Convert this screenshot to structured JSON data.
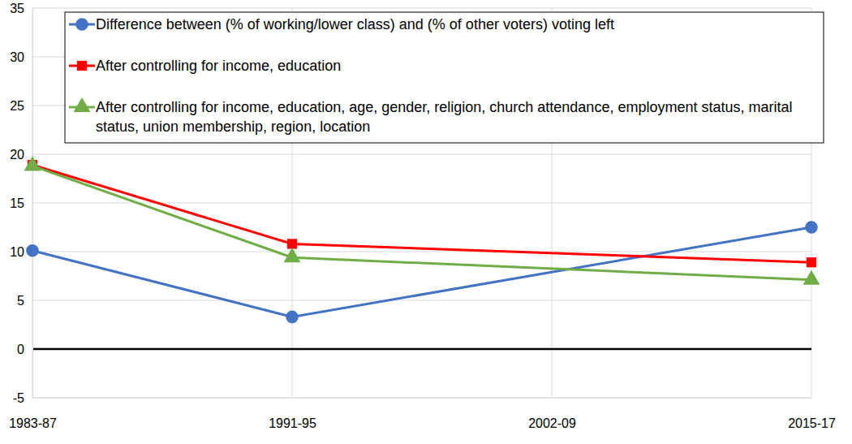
{
  "chart_data": {
    "type": "line",
    "categories": [
      "1983-87",
      "1991-95",
      "2002-09",
      "2015-17"
    ],
    "series": [
      {
        "name": "Difference between (% of working/lower class) and (% of other voters) voting left",
        "color": "#4472C4",
        "marker": "circle",
        "values": [
          10.1,
          3.3,
          null,
          12.5
        ]
      },
      {
        "name": "After controlling for income, education",
        "color": "#FF0000",
        "marker": "square",
        "values": [
          18.9,
          10.8,
          null,
          8.9
        ]
      },
      {
        "name": "After controlling for income, education, age, gender, religion, church attendance, employment status, marital status, union membership, region, location",
        "color": "#70AD47",
        "marker": "triangle",
        "values": [
          18.8,
          9.4,
          null,
          7.1
        ]
      }
    ],
    "ylim": [
      -5,
      35
    ],
    "yticks": [
      -5,
      0,
      5,
      10,
      15,
      20,
      25,
      30,
      35
    ],
    "grid": true,
    "legend": "top"
  }
}
